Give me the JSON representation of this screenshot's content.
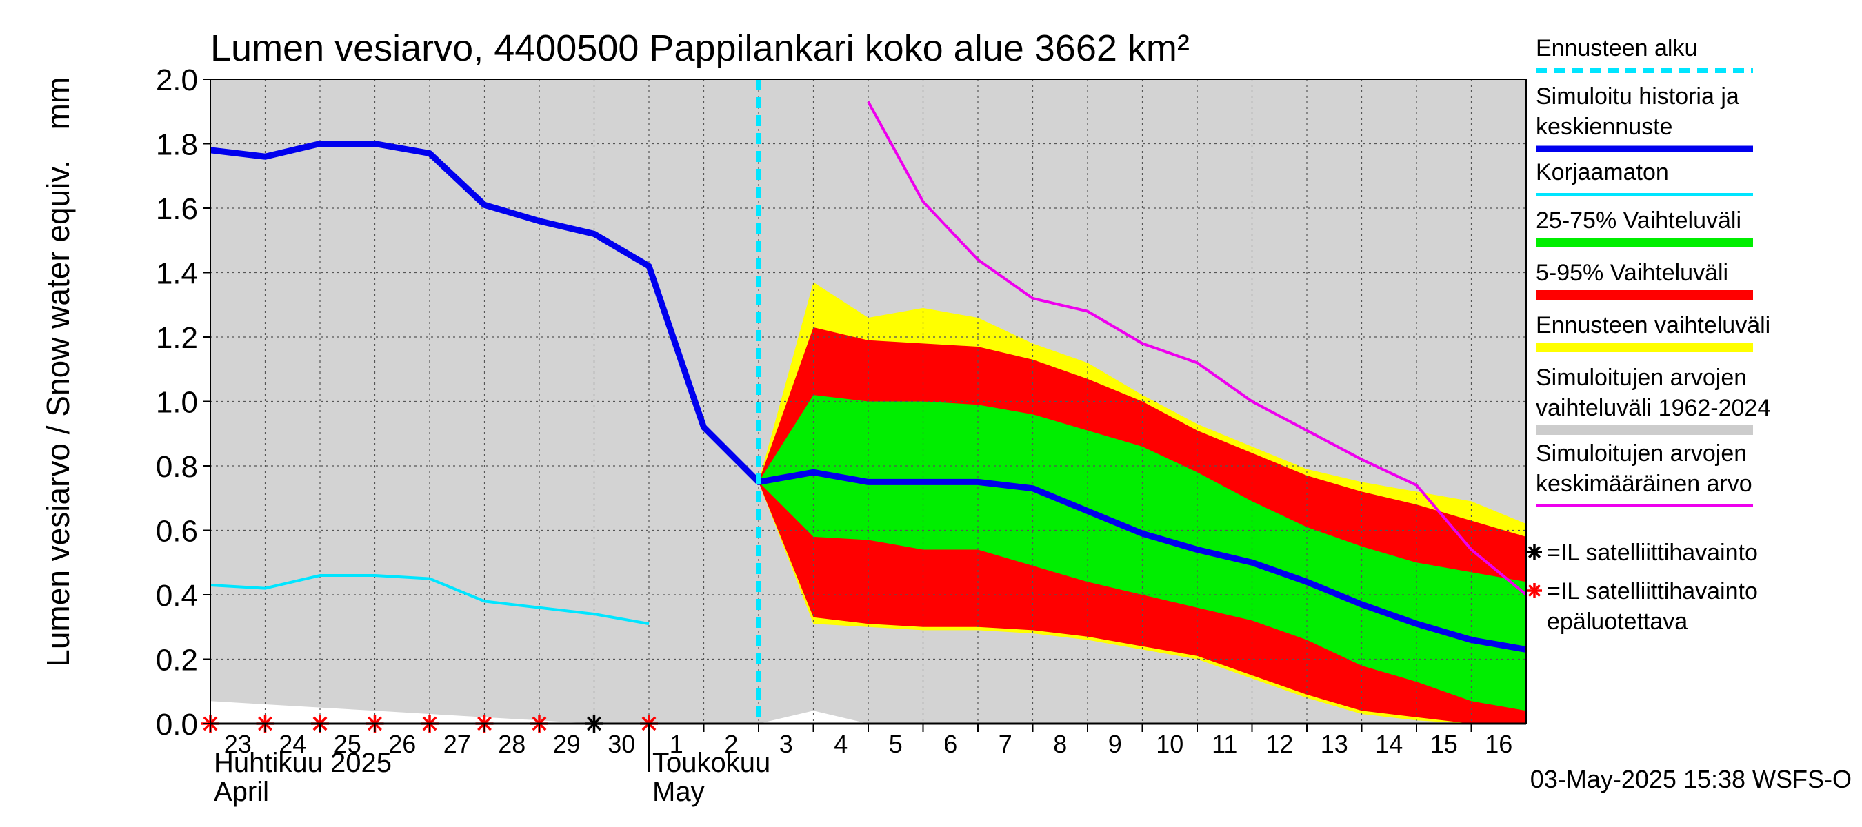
{
  "chart_data": {
    "type": "area",
    "title": "Lumen vesiarvo, 4400500 Pappilankari koko alue 3662 km²",
    "ylabel": "Lumen vesiarvo / Snow water equiv.",
    "yunit": "mm",
    "ylim": [
      0,
      2.0
    ],
    "yticks": [
      0.0,
      0.2,
      0.4,
      0.6,
      0.8,
      1.0,
      1.2,
      1.4,
      1.6,
      1.8,
      2.0
    ],
    "ytick_labels": [
      "0.0",
      "0.2",
      "0.4",
      "0.6",
      "0.8",
      "1.0",
      "1.2",
      "1.4",
      "1.6",
      "1.8",
      "2.0"
    ],
    "x_start_day": 23,
    "x_end_day": 47,
    "day_labels": [
      {
        "x": 23,
        "label": "23"
      },
      {
        "x": 24,
        "label": "24"
      },
      {
        "x": 25,
        "label": "25"
      },
      {
        "x": 26,
        "label": "26"
      },
      {
        "x": 27,
        "label": "27"
      },
      {
        "x": 28,
        "label": "28"
      },
      {
        "x": 29,
        "label": "29"
      },
      {
        "x": 30,
        "label": "30"
      },
      {
        "x": 31,
        "label": "1"
      },
      {
        "x": 32,
        "label": "2"
      },
      {
        "x": 33,
        "label": "3"
      },
      {
        "x": 34,
        "label": "4"
      },
      {
        "x": 35,
        "label": "5"
      },
      {
        "x": 36,
        "label": "6"
      },
      {
        "x": 37,
        "label": "7"
      },
      {
        "x": 38,
        "label": "8"
      },
      {
        "x": 39,
        "label": "9"
      },
      {
        "x": 40,
        "label": "10"
      },
      {
        "x": 41,
        "label": "11"
      },
      {
        "x": 42,
        "label": "12"
      },
      {
        "x": 43,
        "label": "13"
      },
      {
        "x": 44,
        "label": "14"
      },
      {
        "x": 45,
        "label": "15"
      },
      {
        "x": 46,
        "label": "16"
      }
    ],
    "month_labels": [
      {
        "x": 23,
        "fi": "Huhtikuu  2025",
        "en": "April"
      },
      {
        "x": 31,
        "fi": "Toukokuu",
        "en": "May"
      }
    ],
    "forecast_start_x": 33,
    "hist_range": {
      "x": [
        23,
        24,
        25,
        26,
        27,
        28,
        29,
        30,
        31,
        32,
        33,
        34,
        35,
        36,
        37,
        38,
        39,
        40,
        41,
        42,
        43,
        44,
        45,
        46,
        47
      ],
      "low": [
        0.07,
        0.06,
        0.05,
        0.04,
        0.03,
        0.02,
        0.01,
        0.0,
        0.0,
        0.0,
        0.0,
        0.04,
        0.0,
        0.0,
        0.0,
        0.0,
        0.0,
        0.0,
        0.0,
        0.0,
        0.0,
        0.0,
        0.0,
        0.0,
        0.0
      ],
      "high": [
        2.0,
        2.0,
        2.0,
        2.0,
        2.0,
        2.0,
        2.0,
        2.0,
        2.0,
        2.0,
        2.0,
        2.0,
        2.0,
        2.0,
        2.0,
        2.0,
        2.0,
        2.0,
        2.0,
        2.0,
        2.0,
        2.0,
        2.0,
        2.0,
        2.0
      ]
    },
    "forecast_x": [
      33,
      34,
      35,
      36,
      37,
      38,
      39,
      40,
      41,
      42,
      43,
      44,
      45,
      46,
      47
    ],
    "series": [
      {
        "name": "Ennusteen vaihteluväli",
        "color": "#ffff00",
        "low": [
          0.75,
          0.31,
          0.3,
          0.29,
          0.29,
          0.28,
          0.26,
          0.23,
          0.2,
          0.14,
          0.08,
          0.03,
          0.01,
          0.0,
          0.0
        ],
        "high": [
          0.75,
          1.37,
          1.26,
          1.29,
          1.26,
          1.18,
          1.12,
          1.02,
          0.93,
          0.86,
          0.79,
          0.75,
          0.72,
          0.69,
          0.62
        ]
      },
      {
        "name": "5-95% Vaihteluväli",
        "color": "#ff0000",
        "low": [
          0.75,
          0.33,
          0.31,
          0.3,
          0.3,
          0.29,
          0.27,
          0.24,
          0.21,
          0.15,
          0.09,
          0.04,
          0.02,
          0.0,
          0.0
        ],
        "high": [
          0.75,
          1.23,
          1.19,
          1.18,
          1.17,
          1.13,
          1.07,
          1.0,
          0.91,
          0.84,
          0.77,
          0.72,
          0.68,
          0.63,
          0.58
        ]
      },
      {
        "name": "25-75% Vaihteluväli",
        "color": "#00ee00",
        "low": [
          0.75,
          0.58,
          0.57,
          0.54,
          0.54,
          0.49,
          0.44,
          0.4,
          0.36,
          0.32,
          0.26,
          0.18,
          0.13,
          0.07,
          0.04
        ],
        "high": [
          0.75,
          1.02,
          1.0,
          1.0,
          0.99,
          0.96,
          0.91,
          0.86,
          0.78,
          0.69,
          0.61,
          0.55,
          0.5,
          0.47,
          0.44
        ]
      }
    ],
    "median": {
      "name": "Simuloitu historia ja keskiennuste",
      "color": "#0000ee",
      "x": [
        23,
        24,
        25,
        26,
        27,
        28,
        29,
        30,
        31,
        32,
        33,
        34,
        35,
        36,
        37,
        38,
        39,
        40,
        41,
        42,
        43,
        44,
        45,
        46,
        47
      ],
      "y": [
        1.78,
        1.76,
        1.8,
        1.8,
        1.77,
        1.61,
        1.56,
        1.52,
        1.42,
        0.92,
        0.75,
        0.78,
        0.75,
        0.75,
        0.75,
        0.73,
        0.66,
        0.59,
        0.54,
        0.5,
        0.44,
        0.37,
        0.31,
        0.26,
        0.23
      ]
    },
    "uncorrected": {
      "name": "Korjaamaton",
      "color": "#00e5ff",
      "x": [
        23,
        24,
        25,
        26,
        27,
        28,
        29,
        30,
        31
      ],
      "y": [
        0.43,
        0.42,
        0.46,
        0.46,
        0.45,
        0.38,
        0.36,
        0.34,
        0.31
      ]
    },
    "mean": {
      "name": "Simuloitujen arvojen keskimääräinen arvo",
      "color": "#ee00ee",
      "x": [
        35,
        36,
        37,
        38,
        39,
        40,
        41,
        42,
        43,
        44,
        45,
        46,
        47
      ],
      "y": [
        1.93,
        1.62,
        1.44,
        1.32,
        1.28,
        1.18,
        1.12,
        1.0,
        0.91,
        0.82,
        0.74,
        0.54,
        0.4
      ]
    },
    "satellite_obs": [
      {
        "x": 23,
        "y": 0.0,
        "reliable": false
      },
      {
        "x": 24,
        "y": 0.0,
        "reliable": false
      },
      {
        "x": 25,
        "y": 0.0,
        "reliable": false
      },
      {
        "x": 26,
        "y": 0.0,
        "reliable": false
      },
      {
        "x": 27,
        "y": 0.0,
        "reliable": false
      },
      {
        "x": 28,
        "y": 0.0,
        "reliable": false
      },
      {
        "x": 29,
        "y": 0.0,
        "reliable": false
      },
      {
        "x": 30,
        "y": 0.0,
        "reliable": true
      },
      {
        "x": 31,
        "y": 0.0,
        "reliable": false
      }
    ],
    "legend": [
      {
        "kind": "dashed",
        "color": "#00e5ff",
        "lines": [
          "Ennusteen alku"
        ]
      },
      {
        "kind": "line",
        "color": "#0000ee",
        "lines": [
          "Simuloitu historia ja",
          "keskiennuste"
        ]
      },
      {
        "kind": "line",
        "color": "#00e5ff",
        "lines": [
          "Korjaamaton"
        ]
      },
      {
        "kind": "band",
        "color": "#00ee00",
        "lines": [
          "25-75% Vaihteluväli"
        ]
      },
      {
        "kind": "band",
        "color": "#ff0000",
        "lines": [
          "5-95% Vaihteluväli"
        ]
      },
      {
        "kind": "band",
        "color": "#ffff00",
        "lines": [
          "Ennusteen vaihteluväli"
        ]
      },
      {
        "kind": "band",
        "color": "#cccccc",
        "lines": [
          "Simuloitujen arvojen",
          "vaihteluväli 1962-2024"
        ]
      },
      {
        "kind": "line",
        "color": "#ee00ee",
        "lines": [
          "Simuloitujen arvojen",
          "keskimääräinen arvo"
        ]
      },
      {
        "kind": "star",
        "color": "#000000",
        "lines": [
          "=IL satelliittihavainto"
        ]
      },
      {
        "kind": "star",
        "color": "#ff0000",
        "lines": [
          "=IL satelliittihavainto",
          "epäluotettava"
        ]
      }
    ],
    "timestamp": "03-May-2025 15:38 WSFS-O"
  }
}
